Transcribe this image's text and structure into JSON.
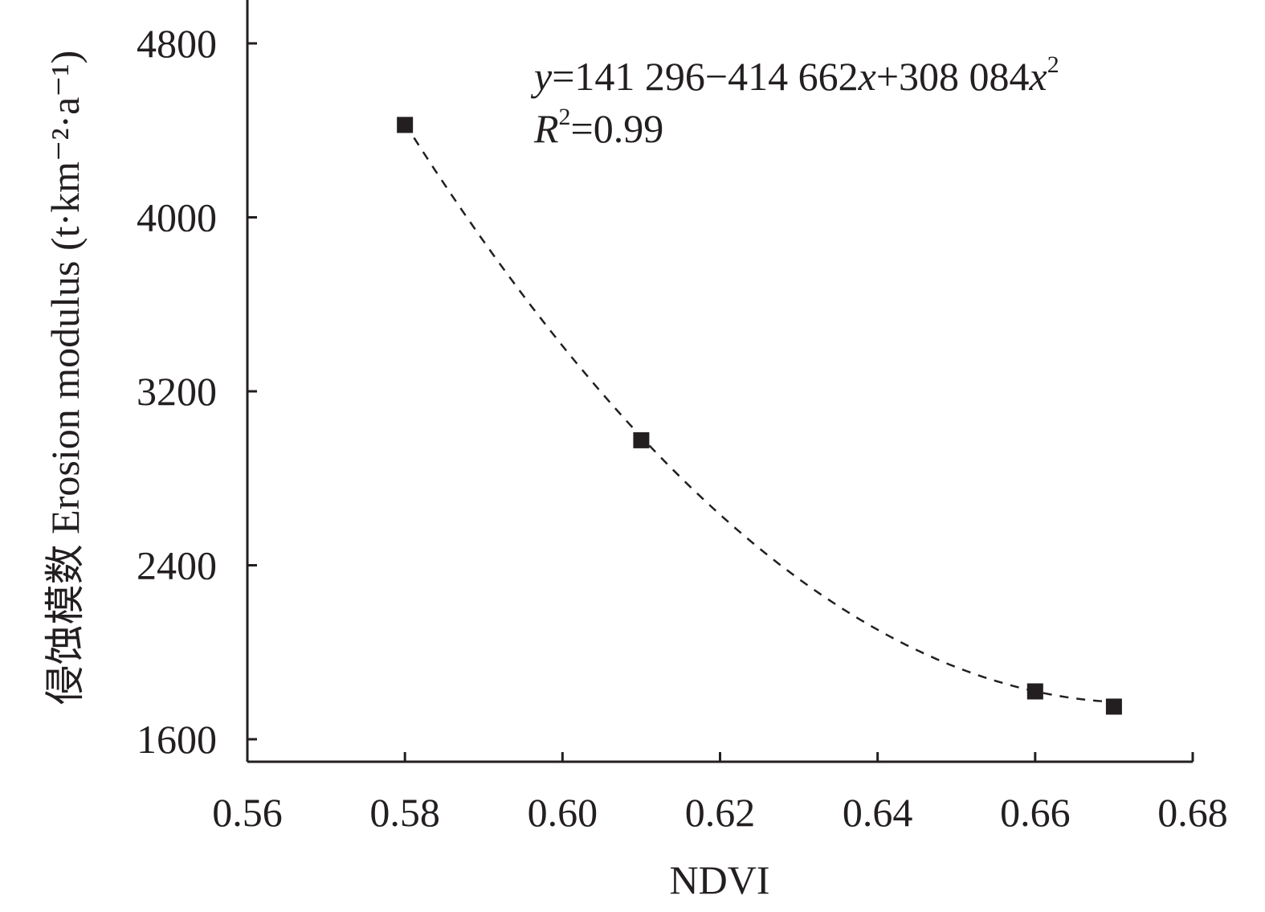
{
  "chart_data": {
    "type": "scatter",
    "xlabel": "NDVI",
    "ylabel": "侵蚀模数 Erosion modulus (t·km⁻²·a⁻¹)",
    "xlim": [
      0.56,
      0.68
    ],
    "ylim": [
      1500,
      5000
    ],
    "x_ticks": [
      0.56,
      0.58,
      0.6,
      0.62,
      0.64,
      0.66,
      0.68
    ],
    "x_tick_labels": [
      "0.56",
      "0.58",
      "0.60",
      "0.62",
      "0.64",
      "0.66",
      "0.68"
    ],
    "y_ticks": [
      1600,
      2400,
      3200,
      4000,
      4800
    ],
    "y_tick_labels": [
      "1600",
      "2400",
      "3200",
      "4000",
      "4800"
    ],
    "grid": false,
    "series": [
      {
        "marker": "square",
        "color": "#231f20",
        "x": [
          0.58,
          0.61,
          0.66,
          0.67
        ],
        "y": [
          4425,
          2975,
          1820,
          1750
        ]
      }
    ],
    "fit": {
      "style": "dashed",
      "coefficients": [
        141296,
        -414662,
        308084
      ],
      "x_range": [
        0.58,
        0.67
      ]
    },
    "annotations": {
      "equation": {
        "y": "y",
        "rhs1": "=141 296−414 662",
        "x1": "x",
        "rhs2": "+308 084",
        "x2": "x",
        "exp": "2"
      },
      "r2": {
        "R": "R",
        "exp": "2",
        "value": "=0.99"
      }
    }
  }
}
